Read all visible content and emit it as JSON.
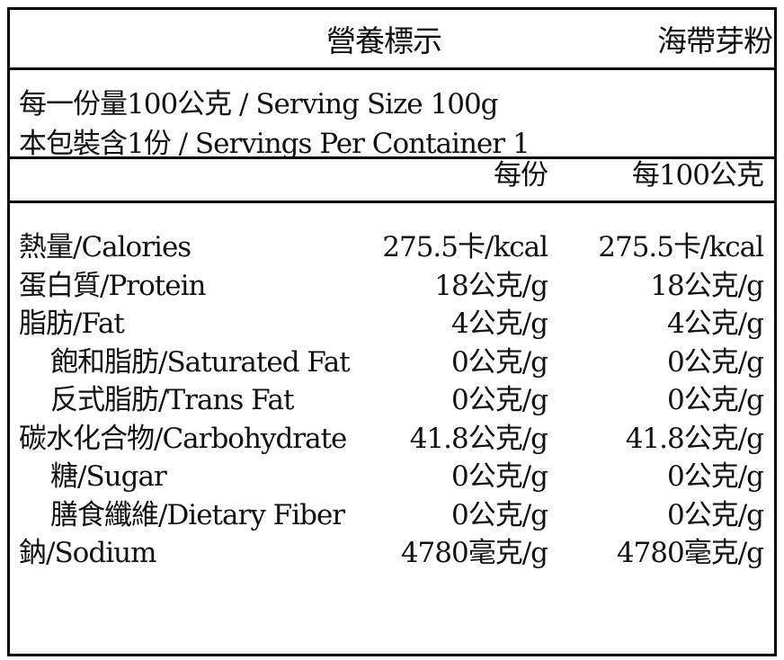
{
  "header": {
    "title": "營養標示",
    "product_name": "海帶芽粉"
  },
  "serving": {
    "serving_size": "每一份量100公克 / Serving Size 100g",
    "servings_per_container": "本包裝含1份 / Servings Per Container 1"
  },
  "columns": {
    "per_serving": "每份",
    "per_100g": "每100公克"
  },
  "nutrients": [
    {
      "name": "熱量/Calories",
      "per_serving": "275.5卡/kcal",
      "per_100g": "275.5卡/kcal"
    },
    {
      "name": "蛋白質/Protein",
      "per_serving": "18公克/g",
      "per_100g": "18公克/g"
    },
    {
      "name": "脂肪/Fat",
      "per_serving": "4公克/g",
      "per_100g": "4公克/g"
    },
    {
      "name": "飽和脂肪/Saturated Fat",
      "per_serving": "0公克/g",
      "per_100g": "0公克/g"
    },
    {
      "name": "反式脂肪/Trans Fat",
      "per_serving": "0公克/g",
      "per_100g": "0公克/g"
    },
    {
      "name": "碳水化合物/Carbohydrate",
      "per_serving": "41.8公克/g",
      "per_100g": "41.8公克/g"
    },
    {
      "name": "糖/Sugar",
      "per_serving": "0公克/g",
      "per_100g": "0公克/g"
    },
    {
      "name": "膳食纖維/Dietary Fiber",
      "per_serving": "0公克/g",
      "per_100g": "0公克/g"
    },
    {
      "name": "鈉/Sodium",
      "per_serving": "4780毫克/g",
      "per_100g": "4780毫克/g"
    }
  ]
}
